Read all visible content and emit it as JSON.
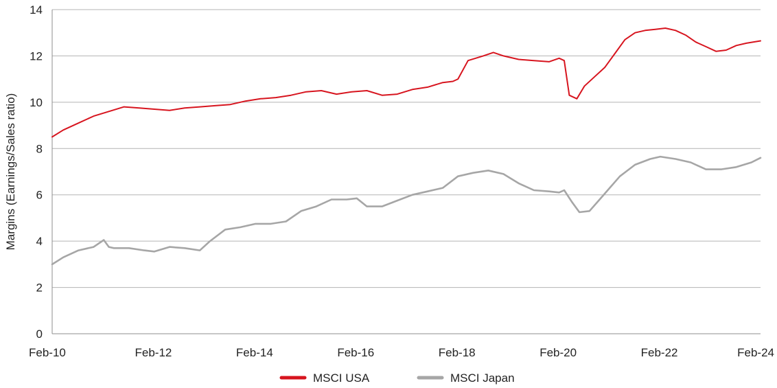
{
  "chart_data": {
    "type": "line",
    "xlabel": "",
    "ylabel": "Margins (Earnings/Sales ratio)",
    "ylim": [
      0,
      14
    ],
    "xlim": [
      2010.08,
      2024.08
    ],
    "yticks": [
      0,
      2,
      4,
      6,
      8,
      10,
      12,
      14
    ],
    "ytick_labels": [
      "0",
      "2",
      "4",
      "6",
      "8",
      "10",
      "12",
      "14"
    ],
    "xticks": [
      2010.08,
      2012.08,
      2014.08,
      2016.08,
      2018.08,
      2020.08,
      2022.08,
      2024.08
    ],
    "xtick_labels": [
      "Feb-10",
      "Feb-12",
      "Feb-14",
      "Feb-16",
      "Feb-18",
      "Feb-20",
      "Feb-22",
      "Feb-24"
    ],
    "grid": "horizontal",
    "legend": "bottom-center",
    "series": [
      {
        "name": "MSCI USA",
        "color": "#d7141e",
        "x": [
          2010.08,
          2010.3,
          2010.6,
          2010.9,
          2011.2,
          2011.5,
          2011.8,
          2012.1,
          2012.4,
          2012.7,
          2013.0,
          2013.3,
          2013.6,
          2013.9,
          2014.2,
          2014.5,
          2014.8,
          2015.1,
          2015.4,
          2015.7,
          2016.0,
          2016.3,
          2016.6,
          2016.9,
          2017.2,
          2017.5,
          2017.8,
          2018.0,
          2018.1,
          2018.3,
          2018.6,
          2018.8,
          2019.0,
          2019.3,
          2019.6,
          2019.9,
          2020.1,
          2020.2,
          2020.3,
          2020.45,
          2020.6,
          2020.8,
          2021.0,
          2021.2,
          2021.4,
          2021.6,
          2021.8,
          2022.0,
          2022.2,
          2022.4,
          2022.6,
          2022.8,
          2023.0,
          2023.2,
          2023.4,
          2023.6,
          2023.8,
          2024.08
        ],
        "values": [
          8.5,
          8.8,
          9.1,
          9.4,
          9.6,
          9.8,
          9.75,
          9.7,
          9.65,
          9.75,
          9.8,
          9.85,
          9.9,
          10.05,
          10.15,
          10.2,
          10.3,
          10.45,
          10.5,
          10.35,
          10.45,
          10.5,
          10.3,
          10.35,
          10.55,
          10.65,
          10.85,
          10.9,
          11.0,
          11.8,
          12.0,
          12.15,
          12.0,
          11.85,
          11.8,
          11.75,
          11.9,
          11.8,
          10.3,
          10.15,
          10.7,
          11.1,
          11.5,
          12.1,
          12.7,
          13.0,
          13.1,
          13.15,
          13.2,
          13.1,
          12.9,
          12.6,
          12.4,
          12.2,
          12.25,
          12.45,
          12.55,
          12.65
        ]
      },
      {
        "name": "MSCI Japan",
        "color": "#a6a6a6",
        "x": [
          2010.08,
          2010.3,
          2010.6,
          2010.9,
          2011.1,
          2011.2,
          2011.3,
          2011.6,
          2011.9,
          2012.1,
          2012.4,
          2012.7,
          2013.0,
          2013.2,
          2013.5,
          2013.8,
          2014.1,
          2014.4,
          2014.7,
          2015.0,
          2015.3,
          2015.6,
          2015.9,
          2016.1,
          2016.3,
          2016.6,
          2016.9,
          2017.2,
          2017.5,
          2017.8,
          2018.1,
          2018.4,
          2018.7,
          2019.0,
          2019.3,
          2019.6,
          2019.9,
          2020.1,
          2020.2,
          2020.35,
          2020.5,
          2020.7,
          2020.9,
          2021.1,
          2021.3,
          2021.6,
          2021.9,
          2022.1,
          2022.4,
          2022.7,
          2023.0,
          2023.3,
          2023.6,
          2023.9,
          2024.08
        ],
        "values": [
          3.0,
          3.3,
          3.6,
          3.75,
          4.05,
          3.75,
          3.7,
          3.7,
          3.6,
          3.55,
          3.75,
          3.7,
          3.6,
          4.0,
          4.5,
          4.6,
          4.75,
          4.75,
          4.85,
          5.3,
          5.5,
          5.8,
          5.8,
          5.85,
          5.5,
          5.5,
          5.75,
          6.0,
          6.15,
          6.3,
          6.8,
          6.95,
          7.05,
          6.9,
          6.5,
          6.2,
          6.15,
          6.1,
          6.2,
          5.7,
          5.25,
          5.3,
          5.8,
          6.3,
          6.8,
          7.3,
          7.55,
          7.65,
          7.55,
          7.4,
          7.1,
          7.1,
          7.2,
          7.4,
          7.6
        ]
      }
    ]
  }
}
